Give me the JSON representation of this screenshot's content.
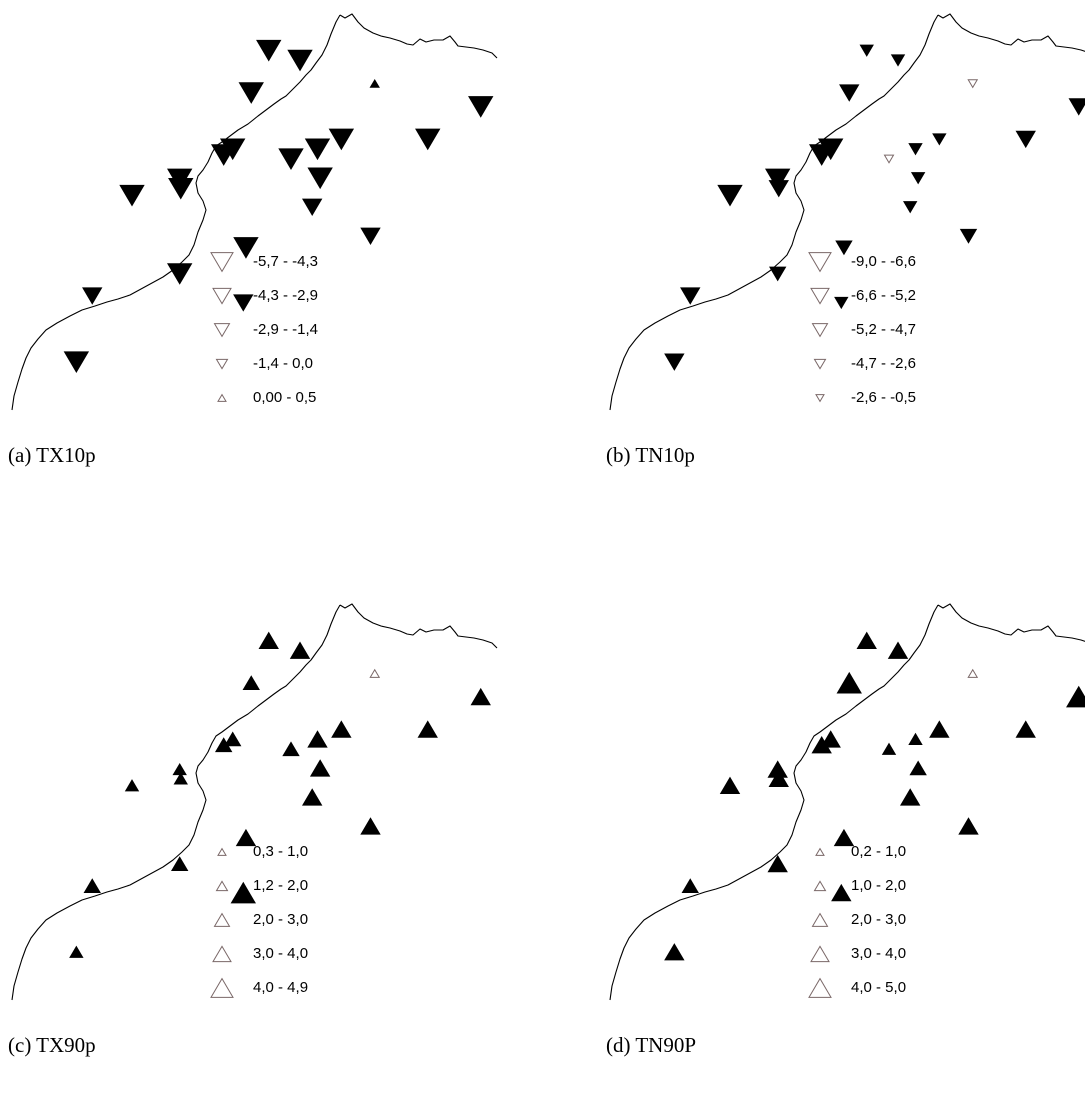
{
  "figure": {
    "colors": {
      "marker_fill": "#000000",
      "legend_stroke": "#7a6868",
      "coast": "#000000"
    },
    "panels": [
      {
        "id": "a",
        "caption": "(a) TX10p",
        "marker_direction": "down",
        "legend": [
          {
            "label": "-5,7 - -4,3",
            "size_class": 5
          },
          {
            "label": "-4,3 - -2,9",
            "size_class": 4
          },
          {
            "label": "-2,9 - -1,4",
            "size_class": 3
          },
          {
            "label": "-1,4 - 0,0",
            "size_class": 2
          },
          {
            "label": "0,00 - 0,5",
            "size_class": 1,
            "direction": "up"
          }
        ],
        "stations": [
          {
            "lon": -5.92,
            "lat": 35.75,
            "size_class": 5
          },
          {
            "lon": -5.33,
            "lat": 35.58,
            "size_class": 5
          },
          {
            "lon": -3.92,
            "lat": 35.18,
            "size_class": 1,
            "direction": "up"
          },
          {
            "lon": -1.92,
            "lat": 34.78,
            "size_class": 5
          },
          {
            "lon": -6.25,
            "lat": 35.02,
            "size_class": 5
          },
          {
            "lon": -6.6,
            "lat": 34.05,
            "size_class": 5
          },
          {
            "lon": -6.77,
            "lat": 33.95,
            "size_class": 5
          },
          {
            "lon": -7.58,
            "lat": 33.37,
            "size_class": 5
          },
          {
            "lon": -7.6,
            "lat": 33.53,
            "size_class": 5
          },
          {
            "lon": -5.0,
            "lat": 34.05,
            "size_class": 5
          },
          {
            "lon": -4.55,
            "lat": 34.22,
            "size_class": 5
          },
          {
            "lon": -2.92,
            "lat": 34.22,
            "size_class": 5
          },
          {
            "lon": -5.5,
            "lat": 33.88,
            "size_class": 5
          },
          {
            "lon": -4.95,
            "lat": 33.55,
            "size_class": 5
          },
          {
            "lon": -5.1,
            "lat": 33.05,
            "size_class": 4
          },
          {
            "lon": -4.0,
            "lat": 32.55,
            "size_class": 4
          },
          {
            "lon": -6.35,
            "lat": 32.35,
            "size_class": 5
          },
          {
            "lon": -8.5,
            "lat": 33.25,
            "size_class": 5
          },
          {
            "lon": -7.6,
            "lat": 31.9,
            "size_class": 5
          },
          {
            "lon": -9.25,
            "lat": 31.52,
            "size_class": 4
          },
          {
            "lon": -6.4,
            "lat": 31.4,
            "size_class": 4
          },
          {
            "lon": -9.55,
            "lat": 30.38,
            "size_class": 5
          }
        ]
      },
      {
        "id": "b",
        "caption": "(b) TN10p",
        "marker_direction": "down",
        "legend": [
          {
            "label": "-9,0 - -6,6",
            "size_class": 5
          },
          {
            "label": "-6,6 - -5,2",
            "size_class": 4
          },
          {
            "label": "-5,2 - -4,7",
            "size_class": 3
          },
          {
            "label": "-4,7 - -2,6",
            "size_class": 2
          },
          {
            "label": "-2,6 - -0,5",
            "size_class": 1
          }
        ],
        "stations": [
          {
            "lon": -5.92,
            "lat": 35.75,
            "size_class": 2
          },
          {
            "lon": -5.33,
            "lat": 35.58,
            "size_class": 2
          },
          {
            "lon": -3.92,
            "lat": 35.18,
            "size_class": 1,
            "hollow": true
          },
          {
            "lon": -1.92,
            "lat": 34.78,
            "size_class": 4
          },
          {
            "lon": -6.25,
            "lat": 35.02,
            "size_class": 4
          },
          {
            "lon": -6.6,
            "lat": 34.05,
            "size_class": 5
          },
          {
            "lon": -6.77,
            "lat": 33.95,
            "size_class": 5
          },
          {
            "lon": -7.58,
            "lat": 33.37,
            "size_class": 4
          },
          {
            "lon": -7.6,
            "lat": 33.53,
            "size_class": 5
          },
          {
            "lon": -5.0,
            "lat": 34.05,
            "size_class": 2
          },
          {
            "lon": -4.55,
            "lat": 34.22,
            "size_class": 2
          },
          {
            "lon": -2.92,
            "lat": 34.22,
            "size_class": 4
          },
          {
            "lon": -5.5,
            "lat": 33.88,
            "size_class": 1,
            "hollow": true
          },
          {
            "lon": -4.95,
            "lat": 33.55,
            "size_class": 2
          },
          {
            "lon": -5.1,
            "lat": 33.05,
            "size_class": 2
          },
          {
            "lon": -4.0,
            "lat": 32.55,
            "size_class": 3
          },
          {
            "lon": -6.35,
            "lat": 32.35,
            "size_class": 3
          },
          {
            "lon": -8.5,
            "lat": 33.25,
            "size_class": 5
          },
          {
            "lon": -7.6,
            "lat": 31.9,
            "size_class": 3
          },
          {
            "lon": -9.25,
            "lat": 31.52,
            "size_class": 4
          },
          {
            "lon": -6.4,
            "lat": 31.4,
            "size_class": 2
          },
          {
            "lon": -9.55,
            "lat": 30.38,
            "size_class": 4
          }
        ]
      },
      {
        "id": "c",
        "caption": "(c) TX90p",
        "marker_direction": "up",
        "legend": [
          {
            "label": "0,3 - 1,0",
            "size_class": 1
          },
          {
            "label": "1,2 - 2,0",
            "size_class": 2
          },
          {
            "label": "2,0 - 3,0",
            "size_class": 3
          },
          {
            "label": "3,0 - 4,0",
            "size_class": 4
          },
          {
            "label": "4,0 - 4,9",
            "size_class": 5
          }
        ],
        "stations": [
          {
            "lon": -5.92,
            "lat": 35.75,
            "size_class": 4
          },
          {
            "lon": -5.33,
            "lat": 35.58,
            "size_class": 4
          },
          {
            "lon": -3.92,
            "lat": 35.18,
            "size_class": 1,
            "hollow": true
          },
          {
            "lon": -1.92,
            "lat": 34.78,
            "size_class": 4
          },
          {
            "lon": -6.25,
            "lat": 35.02,
            "size_class": 3
          },
          {
            "lon": -6.6,
            "lat": 34.05,
            "size_class": 3
          },
          {
            "lon": -6.77,
            "lat": 33.95,
            "size_class": 3
          },
          {
            "lon": -7.58,
            "lat": 33.37,
            "size_class": 2
          },
          {
            "lon": -7.6,
            "lat": 33.53,
            "size_class": 2
          },
          {
            "lon": -5.0,
            "lat": 34.05,
            "size_class": 4
          },
          {
            "lon": -4.55,
            "lat": 34.22,
            "size_class": 4
          },
          {
            "lon": -2.92,
            "lat": 34.22,
            "size_class": 4
          },
          {
            "lon": -5.5,
            "lat": 33.88,
            "size_class": 3
          },
          {
            "lon": -4.95,
            "lat": 33.55,
            "size_class": 4
          },
          {
            "lon": -5.1,
            "lat": 33.05,
            "size_class": 4
          },
          {
            "lon": -4.0,
            "lat": 32.55,
            "size_class": 4
          },
          {
            "lon": -6.35,
            "lat": 32.35,
            "size_class": 4
          },
          {
            "lon": -8.5,
            "lat": 33.25,
            "size_class": 2
          },
          {
            "lon": -7.6,
            "lat": 31.9,
            "size_class": 3
          },
          {
            "lon": -9.25,
            "lat": 31.52,
            "size_class": 3
          },
          {
            "lon": -6.4,
            "lat": 31.4,
            "size_class": 5
          },
          {
            "lon": -9.55,
            "lat": 30.38,
            "size_class": 2
          }
        ]
      },
      {
        "id": "d",
        "caption": "(d) TN90P",
        "marker_direction": "up",
        "legend": [
          {
            "label": "0,2 - 1,0",
            "size_class": 1
          },
          {
            "label": "1,0 - 2,0",
            "size_class": 2
          },
          {
            "label": "2,0 - 3,0",
            "size_class": 3
          },
          {
            "label": "3,0 - 4,0",
            "size_class": 4
          },
          {
            "label": "4,0 - 5,0",
            "size_class": 5
          }
        ],
        "stations": [
          {
            "lon": -5.92,
            "lat": 35.75,
            "size_class": 4
          },
          {
            "lon": -5.33,
            "lat": 35.58,
            "size_class": 4
          },
          {
            "lon": -3.92,
            "lat": 35.18,
            "size_class": 1,
            "hollow": true
          },
          {
            "lon": -1.92,
            "lat": 34.78,
            "size_class": 5
          },
          {
            "lon": -6.25,
            "lat": 35.02,
            "size_class": 5
          },
          {
            "lon": -6.6,
            "lat": 34.05,
            "size_class": 4
          },
          {
            "lon": -6.77,
            "lat": 33.95,
            "size_class": 4
          },
          {
            "lon": -7.58,
            "lat": 33.37,
            "size_class": 4
          },
          {
            "lon": -7.6,
            "lat": 33.53,
            "size_class": 4
          },
          {
            "lon": -5.0,
            "lat": 34.05,
            "size_class": 2
          },
          {
            "lon": -4.55,
            "lat": 34.22,
            "size_class": 4
          },
          {
            "lon": -2.92,
            "lat": 34.22,
            "size_class": 4
          },
          {
            "lon": -5.5,
            "lat": 33.88,
            "size_class": 2
          },
          {
            "lon": -4.95,
            "lat": 33.55,
            "size_class": 3
          },
          {
            "lon": -5.1,
            "lat": 33.05,
            "size_class": 4
          },
          {
            "lon": -4.0,
            "lat": 32.55,
            "size_class": 4
          },
          {
            "lon": -6.35,
            "lat": 32.35,
            "size_class": 4
          },
          {
            "lon": -8.5,
            "lat": 33.25,
            "size_class": 4
          },
          {
            "lon": -7.6,
            "lat": 31.9,
            "size_class": 4
          },
          {
            "lon": -9.25,
            "lat": 31.52,
            "size_class": 3
          },
          {
            "lon": -6.4,
            "lat": 31.4,
            "size_class": 4
          },
          {
            "lon": -9.55,
            "lat": 30.38,
            "size_class": 4
          }
        ]
      }
    ]
  }
}
